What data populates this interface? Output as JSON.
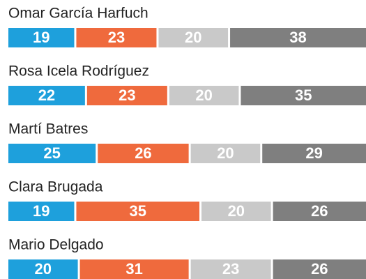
{
  "chart_data": {
    "type": "stacked-bar-horizontal",
    "categories": [
      "Omar García Harfuch",
      "Rosa Icela Rodríguez",
      "Martí Batres",
      "Clara Brugada",
      "Mario Delgado"
    ],
    "series": [
      {
        "color": "#1ea0dc",
        "values": [
          19,
          22,
          25,
          19,
          20
        ]
      },
      {
        "color": "#ef6a3d",
        "values": [
          23,
          23,
          26,
          35,
          31
        ]
      },
      {
        "color": "#c9c9c9",
        "values": [
          20,
          20,
          20,
          20,
          23
        ]
      },
      {
        "color": "#7f7f7f",
        "values": [
          38,
          35,
          29,
          26,
          26
        ]
      }
    ],
    "xlim": [
      0,
      100
    ]
  }
}
